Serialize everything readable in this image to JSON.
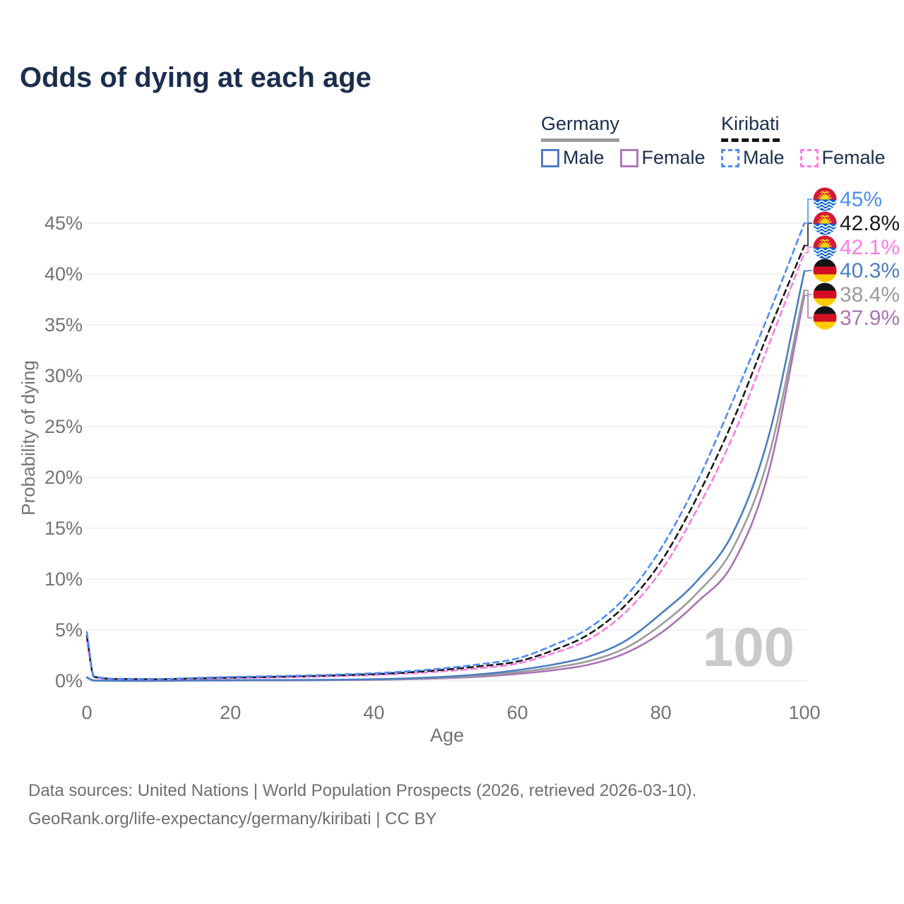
{
  "title": "Odds of dying at each age",
  "legend": {
    "groups": [
      {
        "name": "Germany",
        "line_style": "solid",
        "underline_color": "#9a9a9a",
        "items": [
          {
            "label": "Male",
            "color": "#4b7ec2"
          },
          {
            "label": "Female",
            "color": "#b07ab8"
          }
        ]
      },
      {
        "name": "Kiribati",
        "line_style": "dashed",
        "underline_color": "#141414",
        "items": [
          {
            "label": "Male",
            "color": "#4d8cf5"
          },
          {
            "label": "Female",
            "color": "#fb7be5"
          }
        ]
      }
    ]
  },
  "chart_data": {
    "type": "line",
    "title": "Odds of dying at each age",
    "xlabel": "Age",
    "ylabel": "Probability of dying",
    "xlim": [
      0,
      100
    ],
    "ylim": [
      0,
      45
    ],
    "x_ticks": [
      0,
      20,
      40,
      60,
      80,
      100
    ],
    "y_ticks": [
      "0%",
      "5%",
      "10%",
      "15%",
      "20%",
      "25%",
      "30%",
      "35%",
      "40%",
      "45%"
    ],
    "grid": "horizontal",
    "legend_position": "top-right",
    "watermark": "100",
    "ages": [
      0,
      1,
      5,
      10,
      15,
      20,
      25,
      30,
      35,
      40,
      45,
      50,
      55,
      60,
      65,
      70,
      75,
      80,
      85,
      90,
      95,
      100
    ],
    "series": [
      {
        "name": "Germany Female",
        "country": "germany",
        "sex": "female",
        "color": "#a873b4",
        "dash": false,
        "values": [
          0.3,
          0.02,
          0.01,
          0.01,
          0.02,
          0.03,
          0.04,
          0.05,
          0.07,
          0.1,
          0.16,
          0.26,
          0.42,
          0.68,
          1.05,
          1.6,
          2.7,
          4.7,
          7.7,
          11.5,
          20.5,
          37.9
        ],
        "end_label": "37.9%"
      },
      {
        "name": "Germany Total",
        "country": "germany",
        "sex": "total",
        "color": "#9b9b9b",
        "dash": false,
        "values": [
          0.32,
          0.03,
          0.01,
          0.01,
          0.03,
          0.05,
          0.06,
          0.07,
          0.09,
          0.13,
          0.2,
          0.32,
          0.52,
          0.85,
          1.3,
          1.95,
          3.2,
          5.5,
          8.6,
          13.0,
          22.0,
          38.4
        ],
        "end_label": "38.4%"
      },
      {
        "name": "Germany Male",
        "country": "germany",
        "sex": "male",
        "color": "#4b7ec2",
        "dash": false,
        "values": [
          0.35,
          0.03,
          0.01,
          0.01,
          0.04,
          0.07,
          0.08,
          0.09,
          0.11,
          0.16,
          0.25,
          0.4,
          0.65,
          1.05,
          1.6,
          2.4,
          3.9,
          6.6,
          9.8,
          14.5,
          24.0,
          40.3
        ],
        "end_label": "40.3%"
      },
      {
        "name": "Kiribati Female",
        "country": "kiribati",
        "sex": "female",
        "color": "#fb7be5",
        "dash": true,
        "values": [
          4.0,
          0.36,
          0.16,
          0.14,
          0.2,
          0.27,
          0.32,
          0.38,
          0.46,
          0.57,
          0.73,
          0.95,
          1.25,
          1.7,
          2.7,
          4.1,
          6.7,
          10.8,
          16.8,
          24.0,
          33.0,
          42.1
        ],
        "end_label": "42.1%"
      },
      {
        "name": "Kiribati Total",
        "country": "kiribati",
        "sex": "total",
        "color": "#1a1a1a",
        "dash": true,
        "values": [
          4.4,
          0.4,
          0.18,
          0.16,
          0.24,
          0.32,
          0.38,
          0.45,
          0.54,
          0.66,
          0.84,
          1.1,
          1.45,
          1.9,
          3.0,
          4.6,
          7.4,
          11.7,
          18.0,
          25.5,
          34.3,
          42.8
        ],
        "end_label": "42.8%"
      },
      {
        "name": "Kiribati Male",
        "country": "kiribati",
        "sex": "male",
        "color": "#4d8cf5",
        "dash": true,
        "values": [
          4.8,
          0.45,
          0.2,
          0.18,
          0.28,
          0.38,
          0.45,
          0.52,
          0.62,
          0.75,
          0.95,
          1.25,
          1.65,
          2.2,
          3.5,
          5.2,
          8.2,
          13.0,
          19.5,
          27.5,
          36.0,
          45.0
        ],
        "end_label": "45%"
      }
    ],
    "end_label_order_top_to_bottom": [
      "45%",
      "42.8%",
      "42.1%",
      "40.3%",
      "38.4%",
      "37.9%"
    ]
  },
  "source": {
    "line1": "Data sources: United Nations | World Population Prospects (2026, retrieved 2026-03-10).",
    "line2": "GeoRank.org/life-expectancy/germany/kiribati | CC BY"
  }
}
